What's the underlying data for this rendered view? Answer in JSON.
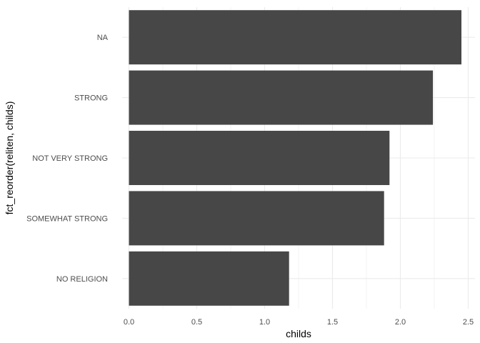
{
  "chart_data": {
    "type": "bar",
    "orientation": "horizontal",
    "categories": [
      "NO RELIGION",
      "SOMEWHAT STRONG",
      "NOT VERY STRONG",
      "STRONG",
      "NA"
    ],
    "values": [
      1.18,
      1.88,
      1.92,
      2.24,
      2.45
    ],
    "xlabel": "childs",
    "ylabel": "fct_reorder(reliten, childs)",
    "xlim": [
      0,
      2.5
    ],
    "xticks": [
      0,
      0.5,
      1,
      1.5,
      2,
      2.5
    ],
    "xtick_labels": [
      "0.0",
      "0.5",
      "1.0",
      "1.5",
      "2.0",
      "2.5"
    ],
    "bar_color": "#474747",
    "grid": true,
    "grid_color": "#ebebeb",
    "background": "#ffffff"
  }
}
